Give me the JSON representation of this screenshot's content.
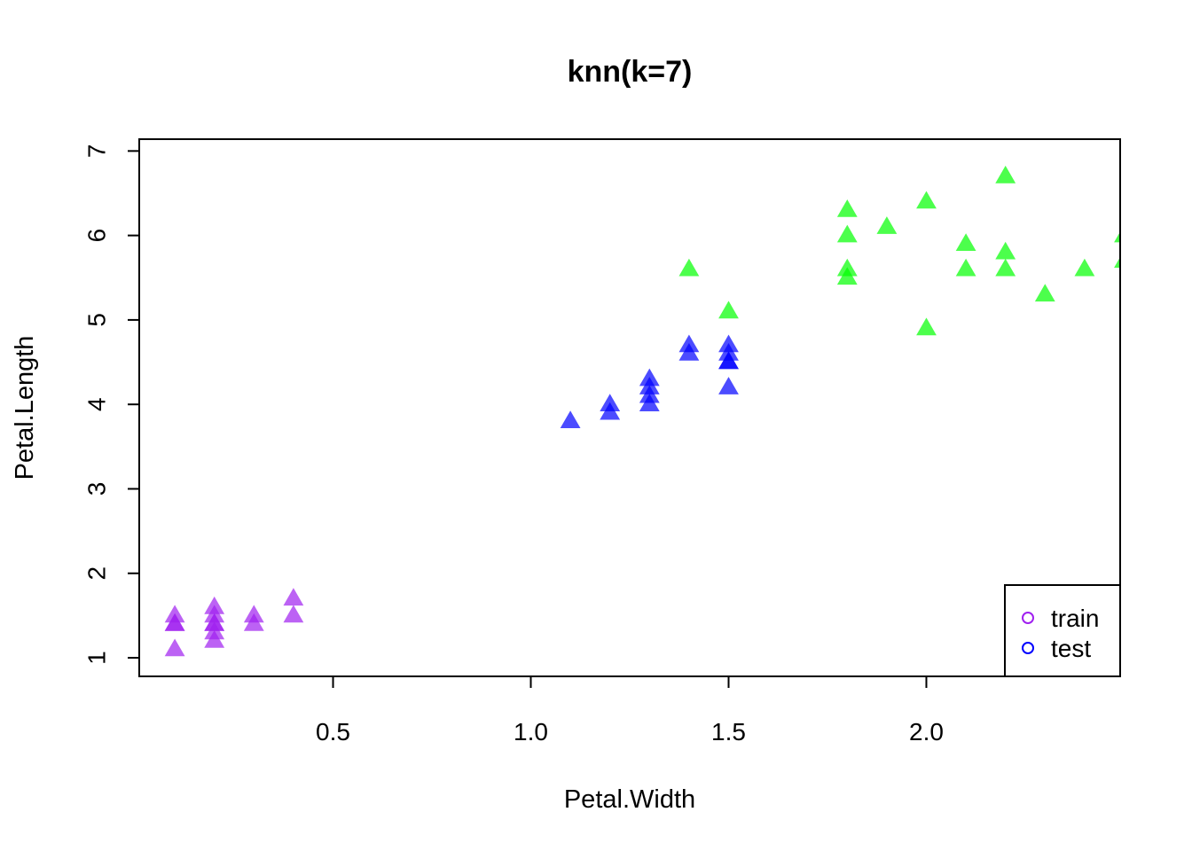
{
  "chart_data": {
    "type": "scatter",
    "title": "knn(k=7)",
    "xlabel": "Petal.Width",
    "ylabel": "Petal.Length",
    "xlim": [
      0.01,
      2.49
    ],
    "ylim": [
      0.78,
      7.14
    ],
    "x_ticks": [
      0.5,
      1.0,
      1.5,
      2.0
    ],
    "x_tick_labels": [
      "0.5",
      "1.0",
      "1.5",
      "2.0"
    ],
    "y_ticks": [
      1,
      2,
      3,
      4,
      5,
      6,
      7
    ],
    "y_tick_labels": [
      "1",
      "2",
      "3",
      "4",
      "5",
      "6",
      "7"
    ],
    "grid": false,
    "legend": {
      "position": "bottom-right",
      "entries": [
        {
          "label": "train",
          "color": "#A020F0"
        },
        {
          "label": "test",
          "color": "#0000FF"
        }
      ]
    },
    "series": [
      {
        "color": "#A020F0",
        "marker": "triangle",
        "points": [
          [
            0.1,
            1.5
          ],
          [
            0.1,
            1.4
          ],
          [
            0.1,
            1.4
          ],
          [
            0.1,
            1.1
          ],
          [
            0.2,
            1.6
          ],
          [
            0.2,
            1.5
          ],
          [
            0.2,
            1.4
          ],
          [
            0.2,
            1.4
          ],
          [
            0.2,
            1.3
          ],
          [
            0.2,
            1.2
          ],
          [
            0.3,
            1.5
          ],
          [
            0.3,
            1.4
          ],
          [
            0.4,
            1.7
          ],
          [
            0.4,
            1.5
          ]
        ]
      },
      {
        "color": "#0000FF",
        "marker": "triangle",
        "points": [
          [
            1.1,
            3.8
          ],
          [
            1.2,
            4.0
          ],
          [
            1.2,
            3.9
          ],
          [
            1.3,
            4.3
          ],
          [
            1.3,
            4.2
          ],
          [
            1.3,
            4.1
          ],
          [
            1.3,
            4.0
          ],
          [
            1.4,
            4.7
          ],
          [
            1.4,
            4.6
          ],
          [
            1.5,
            4.7
          ],
          [
            1.5,
            4.6
          ],
          [
            1.5,
            4.5
          ],
          [
            1.5,
            4.5
          ],
          [
            1.5,
            4.2
          ]
        ]
      },
      {
        "color": "#00FF00",
        "marker": "triangle",
        "points": [
          [
            1.4,
            5.6
          ],
          [
            1.5,
            5.1
          ],
          [
            1.8,
            6.3
          ],
          [
            1.8,
            6.0
          ],
          [
            1.8,
            5.6
          ],
          [
            1.8,
            5.5
          ],
          [
            1.9,
            6.1
          ],
          [
            2.0,
            6.4
          ],
          [
            2.0,
            4.9
          ],
          [
            2.1,
            5.9
          ],
          [
            2.1,
            5.6
          ],
          [
            2.2,
            6.7
          ],
          [
            2.2,
            5.8
          ],
          [
            2.2,
            5.6
          ],
          [
            2.3,
            5.3
          ],
          [
            2.4,
            5.6
          ],
          [
            2.5,
            6.0
          ],
          [
            2.5,
            5.7
          ]
        ]
      }
    ]
  }
}
